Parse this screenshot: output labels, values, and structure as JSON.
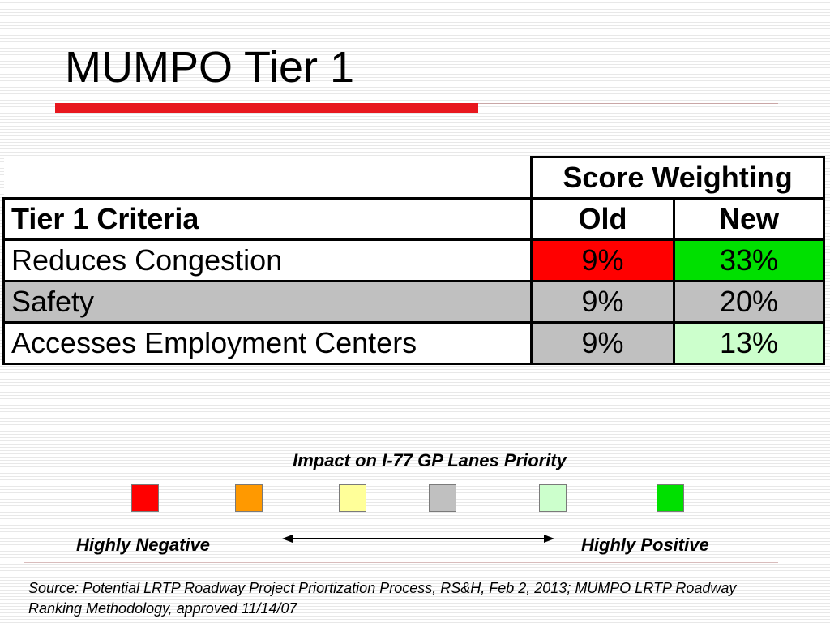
{
  "title": "MUMPO Tier 1",
  "table": {
    "group_header": "Score Weighting",
    "columns": [
      "Tier 1 Criteria",
      "Old",
      "New"
    ],
    "rows": [
      {
        "criterion": "Reduces Congestion",
        "old": "9%",
        "new": "33%",
        "row_bg": "#ffffff",
        "old_bg": "#ff0000",
        "new_bg": "#00e000"
      },
      {
        "criterion": "Safety",
        "old": "9%",
        "new": "20%",
        "row_bg": "#c0c0c0",
        "old_bg": "#c0c0c0",
        "new_bg": "#c0c0c0"
      },
      {
        "criterion": "Accesses Employment Centers",
        "old": "9%",
        "new": "13%",
        "row_bg": "#ffffff",
        "old_bg": "#c0c0c0",
        "new_bg": "#ccffcc"
      }
    ]
  },
  "legend": {
    "title": "Impact on I-77 GP Lanes Priority",
    "swatches": [
      "#ff0000",
      "#ff9900",
      "#ffff99",
      "#c0c0c0",
      "#ccffcc",
      "#00e000"
    ],
    "left_label": "Highly Negative",
    "right_label": "Highly Positive"
  },
  "source": "Source: Potential LRTP Roadway Project Priortization Process, RS&H, Feb 2, 2013; MUMPO LRTP Roadway Ranking Methodology, approved 11/14/07"
}
